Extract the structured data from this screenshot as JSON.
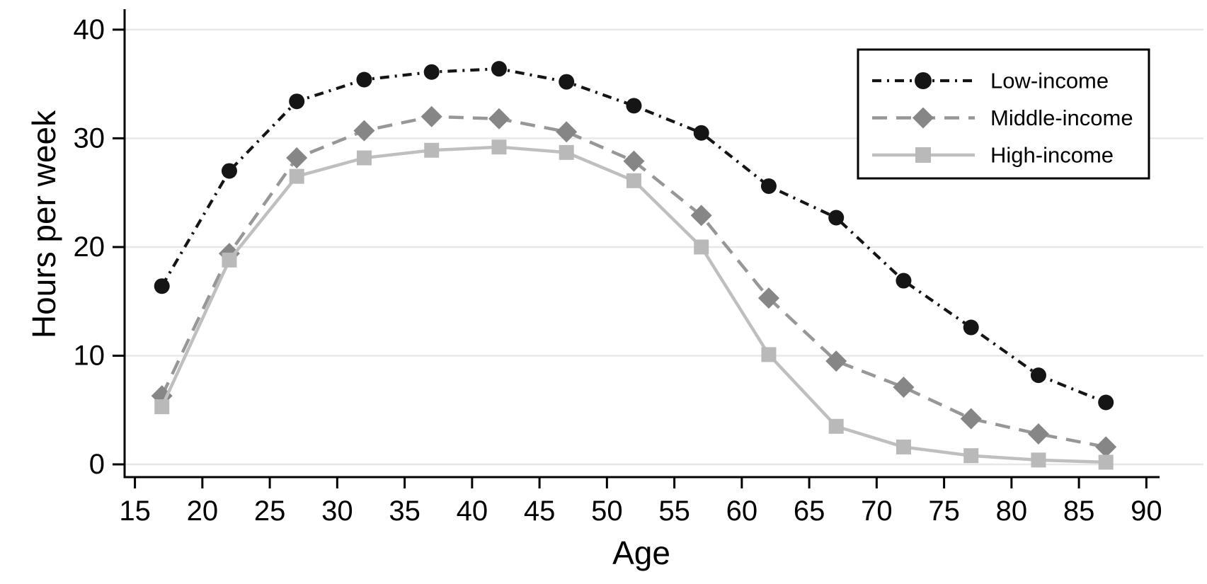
{
  "chart_data": {
    "type": "line",
    "title": "",
    "xlabel": "Age",
    "ylabel": "Hours per week",
    "x": [
      17,
      22,
      27,
      32,
      37,
      42,
      47,
      52,
      57,
      62,
      67,
      72,
      77,
      82,
      87
    ],
    "xlim": [
      15,
      90
    ],
    "ylim": [
      0,
      40
    ],
    "x_ticks": [
      15,
      20,
      25,
      30,
      35,
      40,
      45,
      50,
      55,
      60,
      65,
      70,
      75,
      80,
      85,
      90
    ],
    "y_ticks": [
      0,
      10,
      20,
      30,
      40
    ],
    "grid": "horizontal",
    "legend_position": "top-right-inside",
    "series": [
      {
        "name": "Low-income",
        "marker": "circle",
        "line_style": "dash-dot",
        "marker_color": "#151515",
        "line_color": "#151515",
        "values": [
          16.4,
          27.0,
          33.4,
          35.4,
          36.1,
          36.4,
          35.2,
          33.0,
          30.5,
          25.6,
          22.7,
          16.9,
          12.6,
          8.2,
          5.7
        ]
      },
      {
        "name": "Middle-income",
        "marker": "diamond",
        "line_style": "dashed",
        "marker_color": "#868686",
        "line_color": "#979797",
        "values": [
          6.3,
          19.4,
          28.2,
          30.7,
          32.0,
          31.8,
          30.6,
          27.9,
          22.9,
          15.3,
          9.5,
          7.1,
          4.2,
          2.8,
          1.6
        ]
      },
      {
        "name": "High-income",
        "marker": "square",
        "line_style": "solid",
        "marker_color": "#b9b9b9",
        "line_color": "#bfbfbf",
        "values": [
          5.3,
          18.8,
          26.5,
          28.2,
          28.9,
          29.2,
          28.7,
          26.1,
          20.0,
          10.1,
          3.5,
          1.6,
          0.8,
          0.4,
          0.2
        ]
      }
    ],
    "axis_color": "#000000",
    "grid_color": "#e8e8e8",
    "background": "#ffffff"
  }
}
